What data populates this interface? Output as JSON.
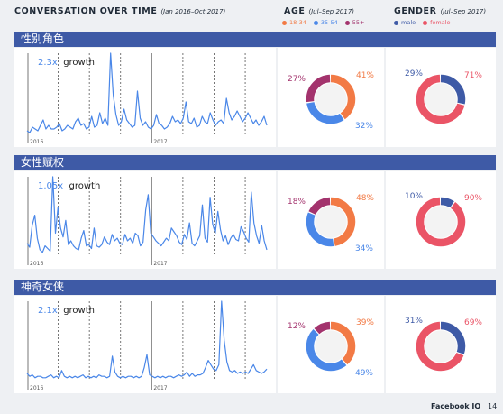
{
  "header": {
    "title": "CONVERSATION OVER TIME",
    "title_sub": "(Jan 2016–Oct 2017)",
    "age_title": "AGE",
    "age_sub": "(Jul–Sep 2017)",
    "gender_title": "GENDER",
    "gender_sub": "(Jul–Sep 2017)",
    "age_legend": [
      {
        "label": "18-34",
        "color": "#f27a45"
      },
      {
        "label": "35-54",
        "color": "#4a87e8"
      },
      {
        "label": "55+",
        "color": "#a3336d"
      }
    ],
    "gender_legend": [
      {
        "label": "male",
        "color": "#3e5aa6"
      },
      {
        "label": "female",
        "color": "#ea5466"
      }
    ]
  },
  "footer": {
    "brand": "Facebook IQ",
    "page": "14"
  },
  "chart_data": [
    {
      "type": "line",
      "section": "性别角色",
      "growth_value": "2.3x",
      "growth_label": "growth",
      "x_labels": [
        "2016",
        "2017"
      ],
      "y_relative": [
        2,
        1,
        4,
        3,
        2,
        5,
        8,
        3,
        5,
        3,
        3,
        4,
        6,
        2,
        3,
        5,
        4,
        3,
        7,
        9,
        5,
        6,
        3,
        4,
        10,
        4,
        5,
        12,
        6,
        9,
        5,
        45,
        22,
        11,
        5,
        7,
        14,
        8,
        6,
        4,
        5,
        24,
        9,
        5,
        7,
        4,
        3,
        5,
        11,
        6,
        5,
        3,
        4,
        6,
        10,
        7,
        8,
        6,
        9,
        18,
        7,
        6,
        9,
        4,
        5,
        10,
        7,
        6,
        12,
        8,
        5,
        7,
        8,
        6,
        20,
        12,
        8,
        10,
        13,
        10,
        7,
        9,
        12,
        9,
        6,
        8,
        5,
        7,
        10,
        5
      ]
    },
    {
      "type": "line",
      "section": "女性赋权",
      "growth_value": "1.05x",
      "growth_label": "growth",
      "x_labels": [
        "2016",
        "2017"
      ],
      "y_relative": [
        10,
        7,
        24,
        32,
        14,
        5,
        3,
        8,
        6,
        4,
        62,
        18,
        38,
        22,
        15,
        28,
        9,
        12,
        8,
        6,
        5,
        14,
        20,
        8,
        9,
        6,
        22,
        8,
        7,
        9,
        15,
        11,
        9,
        17,
        12,
        14,
        10,
        9,
        17,
        12,
        14,
        10,
        18,
        16,
        8,
        11,
        36,
        48,
        18,
        15,
        12,
        10,
        8,
        11,
        14,
        12,
        22,
        19,
        16,
        11,
        9,
        17,
        13,
        26,
        10,
        8,
        12,
        16,
        40,
        14,
        11,
        46,
        25,
        18,
        35,
        21,
        12,
        16,
        9,
        14,
        17,
        13,
        12,
        23,
        19,
        14,
        11,
        50,
        26,
        16,
        10,
        24,
        12,
        5
      ]
    },
    {
      "type": "line",
      "section": "神奇女侠",
      "growth_value": "2.1x",
      "growth_label": "growth",
      "x_labels": [
        "2016",
        "2017"
      ],
      "y_relative": [
        5,
        3,
        4,
        2,
        3,
        3,
        2,
        2,
        3,
        4,
        2,
        3,
        2,
        7,
        3,
        2,
        3,
        2,
        3,
        2,
        3,
        4,
        2,
        3,
        2,
        3,
        2,
        4,
        3,
        3,
        2,
        3,
        17,
        6,
        3,
        2,
        3,
        2,
        3,
        3,
        2,
        3,
        2,
        3,
        9,
        18,
        4,
        3,
        2,
        3,
        2,
        3,
        2,
        3,
        3,
        2,
        3,
        4,
        3,
        4,
        6,
        3,
        5,
        3,
        4,
        4,
        5,
        9,
        14,
        11,
        8,
        7,
        11,
        55,
        28,
        13,
        7,
        6,
        7,
        5,
        6,
        5,
        6,
        5,
        8,
        11,
        7,
        6,
        5,
        6,
        8
      ]
    }
  ],
  "age_donuts": [
    {
      "values": [
        41,
        32,
        27
      ],
      "labels": [
        "41%",
        "32%",
        "27%"
      ]
    },
    {
      "values": [
        48,
        34,
        18
      ],
      "labels": [
        "48%",
        "34%",
        "18%"
      ]
    },
    {
      "values": [
        39,
        49,
        12
      ],
      "labels": [
        "39%",
        "49%",
        "12%"
      ]
    }
  ],
  "gender_donuts": [
    {
      "values": [
        29,
        71
      ],
      "labels": [
        "29%",
        "71%"
      ]
    },
    {
      "values": [
        10,
        90
      ],
      "labels": [
        "10%",
        "90%"
      ]
    },
    {
      "values": [
        31,
        69
      ],
      "labels": [
        "31%",
        "69%"
      ]
    }
  ]
}
